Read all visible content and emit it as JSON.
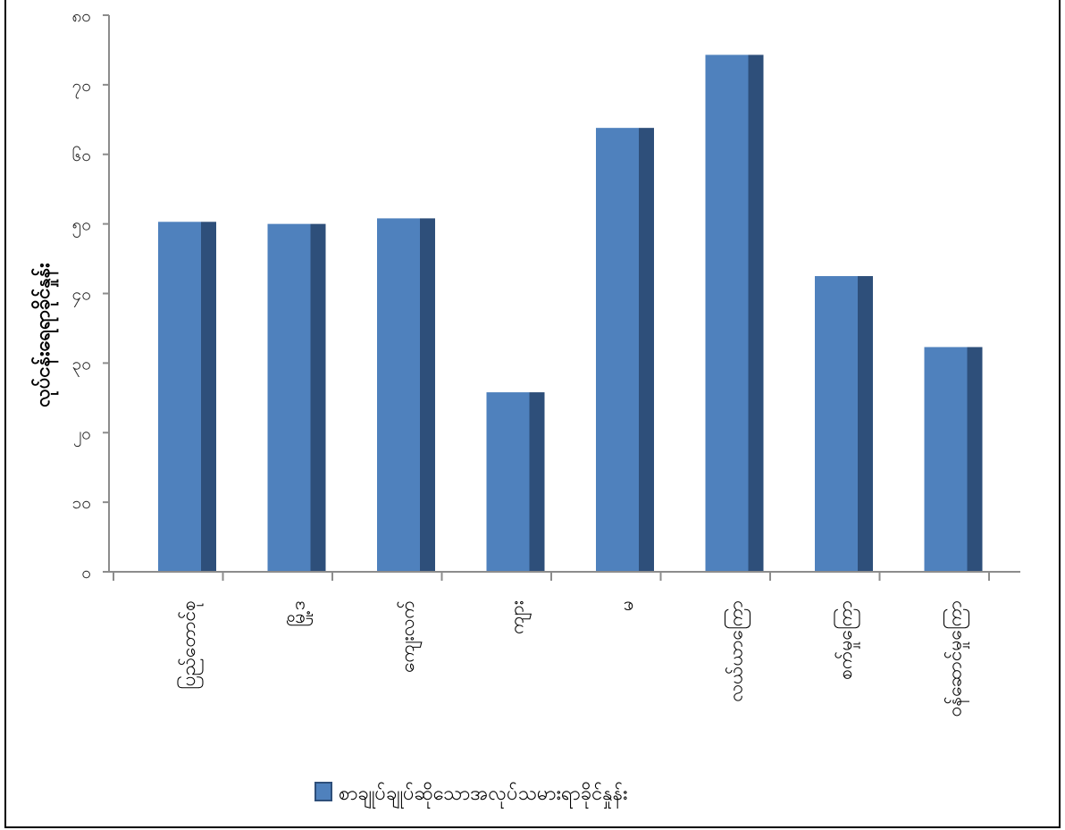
{
  "chart_data": {
    "type": "bar",
    "categories": [
      "ပြည်တောင်စု",
      "မြို့ဒ",
      "ကျေးလက်",
      "ကျား",
      "မ",
      "လယ်ယာကြော",
      "စက်မှုကြော",
      "ဝန်ဆောင်မှုကြော"
    ],
    "series": [
      {
        "name": "စာချုပ်ချုပ်ဆိုသောအလုပ်သမားရာခိုင်နှုန်း",
        "values": [
          50.3,
          50.0,
          50.8,
          25.8,
          63.8,
          74.3,
          42.5,
          32.3
        ],
        "color": "#4f81bd",
        "side_color": "#2e4f7a"
      }
    ],
    "ylabel": "လုပ်ငန်းရေရာခိုင်နှုန်း",
    "xlabel": "",
    "ylim": [
      0,
      80
    ],
    "yticks": [
      0,
      10,
      20,
      30,
      40,
      50,
      60,
      70,
      80
    ],
    "ytick_labels": [
      "၀",
      "၁၀",
      "၂၀",
      "၃၀",
      "၄၀",
      "၅၀",
      "၆၀",
      "၇၀",
      "၈၀"
    ],
    "grid": false,
    "legend_position": "bottom",
    "axis_color": "#8c8c8c"
  }
}
